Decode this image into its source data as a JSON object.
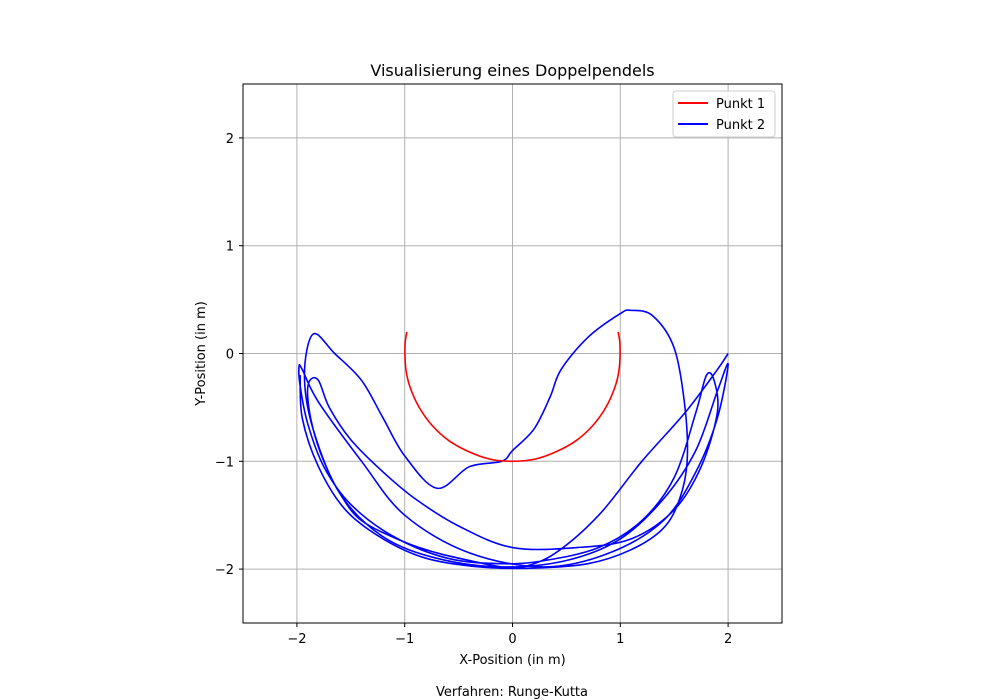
{
  "chart_data": {
    "type": "line",
    "title": "Visualisierung eines Doppelpendels",
    "xlabel": "X-Position (in m)",
    "ylabel": "Y-Position (in m)",
    "footnote": "Verfahren: Runge-Kutta",
    "xlim": [
      -2.5,
      2.5
    ],
    "ylim": [
      -2.5,
      2.5
    ],
    "xticks": [
      -2,
      -1,
      0,
      1,
      2
    ],
    "yticks": [
      -2,
      -1,
      0,
      1,
      2
    ],
    "xtick_labels": [
      "−2",
      "−1",
      "0",
      "1",
      "2"
    ],
    "ytick_labels": [
      "−2",
      "−1",
      "0",
      "1",
      "2"
    ],
    "grid": true,
    "legend_position": "top-right",
    "series": [
      {
        "name": "Punkt 1",
        "color": "#ff0000",
        "x": [
          -0.98,
          -0.997,
          -0.99,
          -0.951,
          -0.866,
          -0.743,
          -0.588,
          -0.407,
          -0.208,
          0.0,
          0.208,
          0.407,
          0.588,
          0.743,
          0.866,
          0.951,
          0.99,
          0.997,
          0.98
        ],
        "y": [
          0.2,
          0.08,
          -0.14,
          -0.31,
          -0.5,
          -0.67,
          -0.81,
          -0.91,
          -0.98,
          -1.0,
          -0.98,
          -0.91,
          -0.81,
          -0.67,
          -0.5,
          -0.31,
          -0.14,
          0.08,
          0.2
        ]
      },
      {
        "name": "Punkt 2",
        "color": "#0000ff",
        "x": [
          2.0,
          1.9,
          1.6,
          1.2,
          0.8,
          0.4,
          0.1,
          -0.1,
          -0.4,
          -0.7,
          -1.0,
          -1.4,
          -1.6,
          -1.75,
          -1.85,
          -1.9,
          -1.88,
          -1.8,
          -1.7,
          -1.5,
          -1.2,
          -0.9,
          -0.5,
          0.0,
          0.6,
          1.1,
          1.5,
          1.75,
          1.9,
          1.87,
          1.8,
          1.7,
          1.5,
          1.2,
          0.8,
          0.3,
          -0.1,
          -0.6,
          -1.1,
          -1.5,
          -1.75,
          -1.9,
          -1.97,
          -1.98,
          -1.95,
          -1.8,
          -1.4,
          -1.0,
          -0.4,
          0.3,
          0.9,
          1.4,
          1.7,
          1.9,
          2.0,
          1.9,
          1.7,
          1.4,
          1.0,
          0.5,
          -0.1,
          -0.7,
          -1.2,
          -1.6,
          -1.85,
          -1.93,
          -1.85,
          -1.65,
          -1.4,
          -1.2,
          -1.0,
          -0.7,
          -0.4,
          -0.1,
          0.0,
          0.2,
          0.35,
          0.45,
          0.7,
          1.0,
          1.1,
          1.3,
          1.5,
          1.6,
          1.62,
          1.55,
          1.4,
          1.1,
          0.7,
          0.2,
          -0.3,
          -0.8,
          -1.2,
          -1.55,
          -1.8,
          -1.95,
          -1.97
        ],
        "y": [
          0.0,
          -0.15,
          -0.55,
          -1.0,
          -1.5,
          -1.85,
          -1.98,
          -1.98,
          -1.92,
          -1.85,
          -1.75,
          -1.55,
          -1.3,
          -1.0,
          -0.7,
          -0.4,
          -0.25,
          -0.25,
          -0.5,
          -0.8,
          -1.1,
          -1.35,
          -1.6,
          -1.8,
          -1.8,
          -1.72,
          -1.45,
          -1.05,
          -0.55,
          -0.25,
          -0.2,
          -0.55,
          -1.15,
          -1.55,
          -1.8,
          -1.92,
          -1.95,
          -1.9,
          -1.7,
          -1.4,
          -1.05,
          -0.65,
          -0.3,
          -0.12,
          -0.15,
          -0.45,
          -1.0,
          -1.5,
          -1.85,
          -1.98,
          -1.85,
          -1.55,
          -1.1,
          -0.6,
          -0.1,
          -0.35,
          -0.9,
          -1.35,
          -1.72,
          -1.92,
          -1.98,
          -1.9,
          -1.7,
          -1.3,
          -0.7,
          -0.2,
          0.18,
          0.0,
          -0.25,
          -0.6,
          -0.95,
          -1.25,
          -1.05,
          -1.0,
          -0.9,
          -0.7,
          -0.4,
          -0.15,
          0.15,
          0.37,
          0.4,
          0.35,
          0.05,
          -0.5,
          -1.0,
          -1.35,
          -1.62,
          -1.82,
          -1.95,
          -1.99,
          -1.98,
          -1.9,
          -1.72,
          -1.45,
          -1.05,
          -0.6,
          -0.2
        ]
      }
    ]
  }
}
